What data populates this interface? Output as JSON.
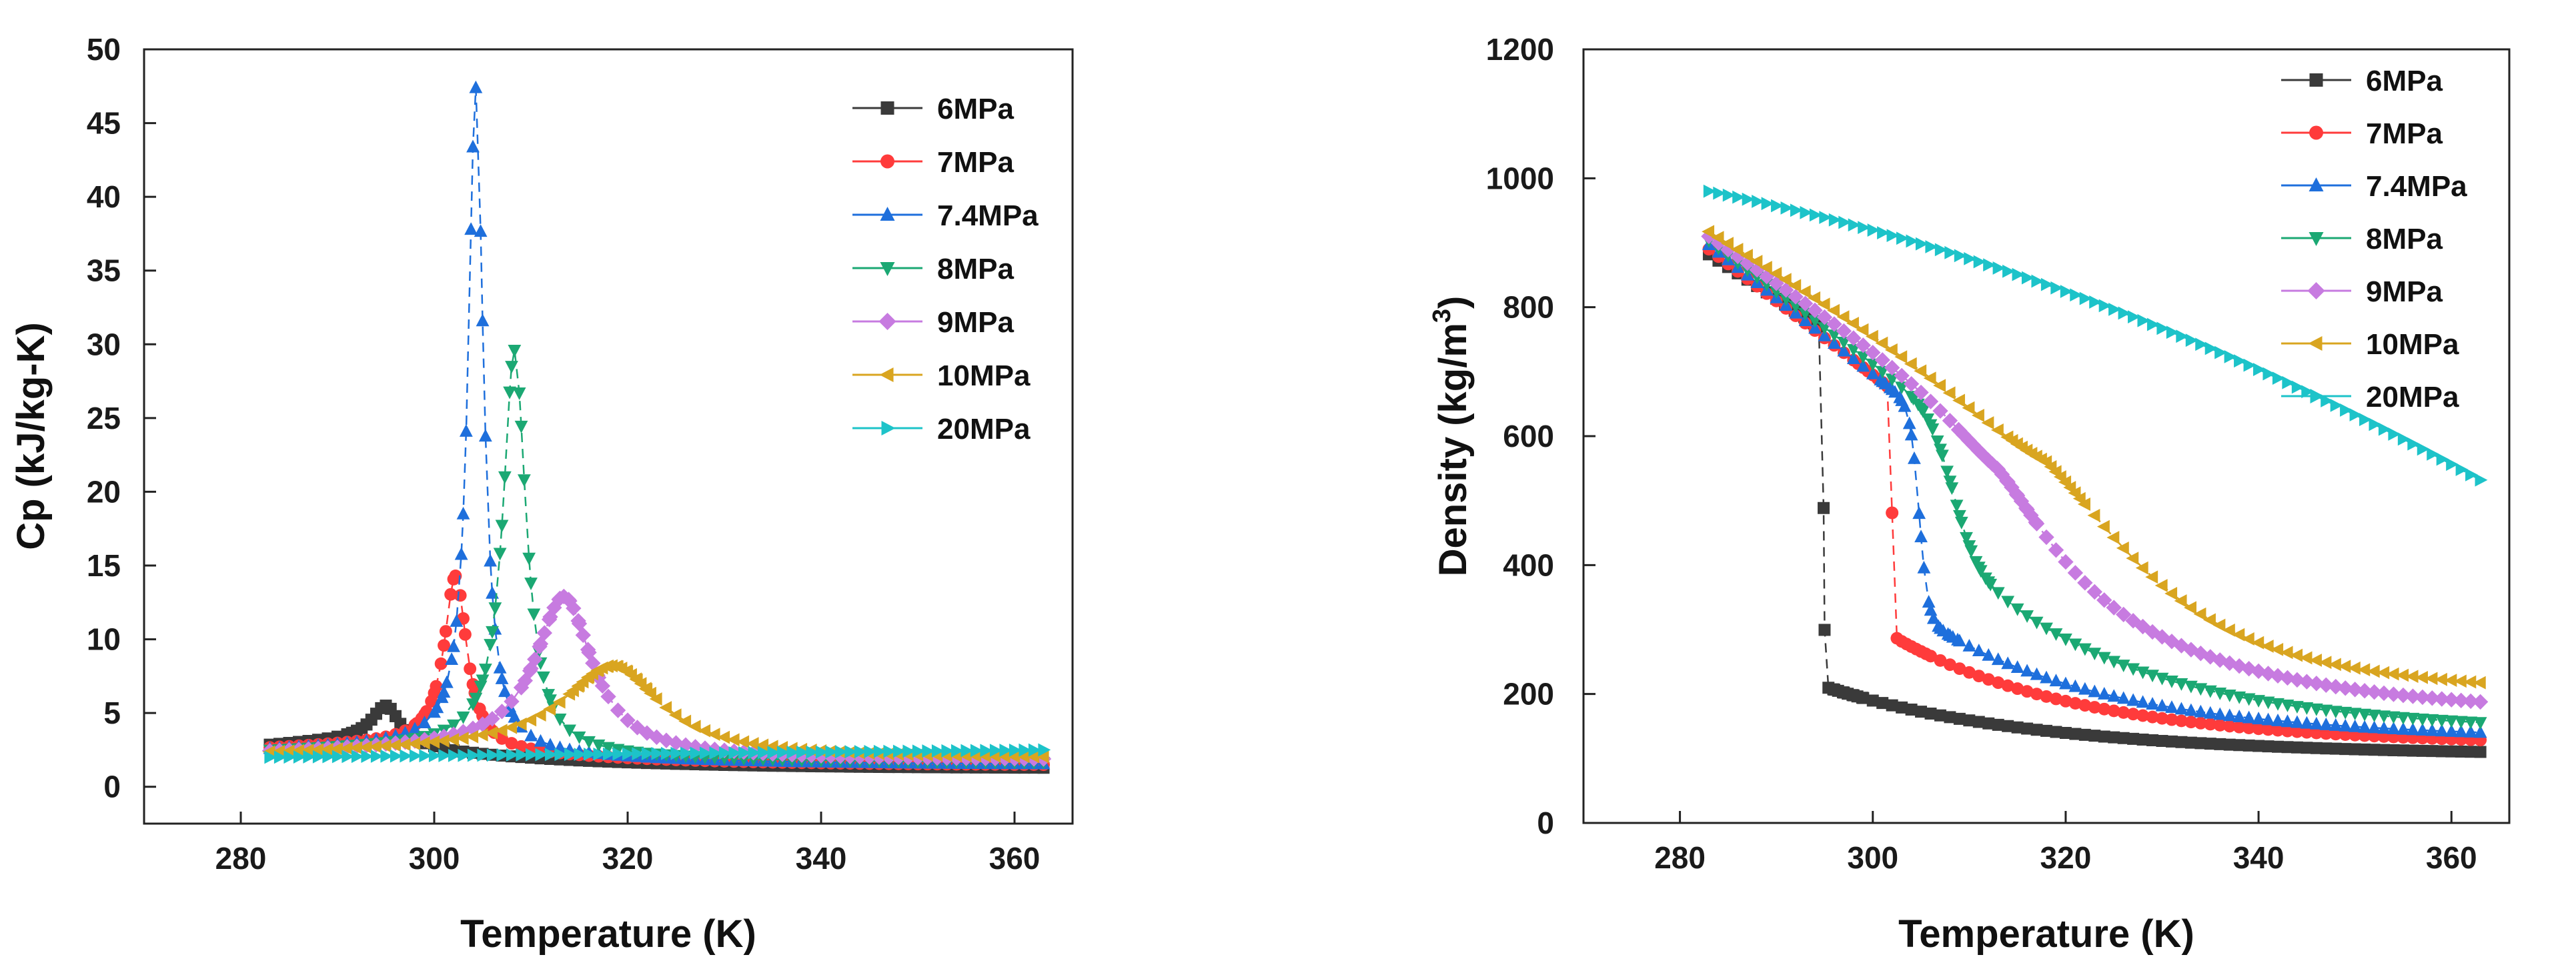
{
  "chart_data": [
    {
      "type": "scatter",
      "xlabel": "Temperature (K)",
      "ylabel": "Cp (kJ/kg-K)",
      "xlim": [
        270,
        366
      ],
      "ylim": [
        -2.5,
        50
      ],
      "xticks": [
        280,
        300,
        320,
        340,
        360
      ],
      "yticks": [
        0,
        5,
        10,
        15,
        20,
        25,
        30,
        35,
        40,
        45,
        50
      ],
      "legend_position": "top-right",
      "series": [
        {
          "name": "6MPa",
          "color": "#3a3a3a",
          "marker": "square",
          "curve": "peak",
          "peak_x": 295.0,
          "peak_y": 5.5,
          "low_left": 2.8,
          "high_right": 1.25,
          "width": 1.7
        },
        {
          "name": "7MPa",
          "color": "#ff3b3b",
          "marker": "circle",
          "curve": "peak",
          "peak_x": 302.2,
          "peak_y": 14.3,
          "low_left": 2.6,
          "high_right": 1.45,
          "width": 1.4
        },
        {
          "name": "7.4MPa",
          "color": "#1e6fdc",
          "marker": "triangle-up",
          "curve": "peak",
          "peak_x": 304.3,
          "peak_y": 47.4,
          "low_left": 2.5,
          "high_right": 1.5,
          "width": 0.95
        },
        {
          "name": "8MPa",
          "color": "#1ba873",
          "marker": "triangle-down",
          "curve": "peak",
          "peak_x": 308.3,
          "peak_y": 29.6,
          "low_left": 2.4,
          "high_right": 1.6,
          "width": 1.45
        },
        {
          "name": "9MPa",
          "color": "#c77be0",
          "marker": "diamond",
          "curve": "peak",
          "peak_x": 313.4,
          "peak_y": 12.9,
          "low_left": 2.3,
          "high_right": 1.8,
          "width": 3.5
        },
        {
          "name": "10MPa",
          "color": "#d9a520",
          "marker": "triangle-left",
          "curve": "peak",
          "peak_x": 318.4,
          "peak_y": 8.2,
          "low_left": 2.2,
          "high_right": 1.9,
          "width": 6.0
        },
        {
          "name": "20MPa",
          "color": "#1dc3c9",
          "marker": "triangle-right",
          "curve": "linear",
          "y_start": 2.0,
          "y_end": 2.5
        }
      ]
    },
    {
      "type": "scatter",
      "xlabel": "Temperature (K)",
      "ylabel": "Density (kg/m",
      "ylabel_sup": "3",
      "ylabel_close": ")",
      "xlim": [
        270,
        366
      ],
      "ylim": [
        0,
        1200
      ],
      "xticks": [
        280,
        300,
        320,
        340,
        360
      ],
      "yticks": [
        0,
        200,
        400,
        600,
        800,
        1000,
        1200
      ],
      "legend_position": "top-right",
      "series": [
        {
          "name": "6MPa",
          "color": "#3a3a3a",
          "marker": "square",
          "curve": "sigmoid",
          "transition_x": 294.9,
          "rho_liquid_start": 882,
          "rho_liquid_end": 765,
          "rho_gas_start": 212,
          "rho_gas_end": 106,
          "width": 0.06
        },
        {
          "name": "7MPa",
          "color": "#ff3b3b",
          "marker": "circle",
          "curve": "sigmoid",
          "transition_x": 302.0,
          "rho_liquid_start": 890,
          "rho_liquid_end": 672,
          "rho_gas_start": 290,
          "rho_gas_end": 122,
          "width": 0.08
        },
        {
          "name": "7.4MPa",
          "color": "#1e6fdc",
          "marker": "triangle-up",
          "curve": "sigmoid",
          "transition_x": 304.8,
          "rho_liquid_start": 897,
          "rho_liquid_end": 640,
          "rho_gas_start": 320,
          "rho_gas_end": 133,
          "width": 0.45
        },
        {
          "name": "8MPa",
          "color": "#1ba873",
          "marker": "triangle-down",
          "curve": "sigmoid",
          "transition_x": 308.2,
          "rho_liquid_start": 903,
          "rho_liquid_end": 620,
          "rho_gas_start": 420,
          "rho_gas_end": 145,
          "width": 1.1
        },
        {
          "name": "9MPa",
          "color": "#c77be0",
          "marker": "diamond",
          "curve": "sigmoid",
          "transition_x": 312.9,
          "rho_liquid_start": 910,
          "rho_liquid_end": 600,
          "rho_gas_start": 500,
          "rho_gas_end": 175,
          "width": 3.2
        },
        {
          "name": "10MPa",
          "color": "#d9a520",
          "marker": "triangle-left",
          "curve": "sigmoid",
          "transition_x": 318.0,
          "rho_liquid_start": 918,
          "rho_liquid_end": 600,
          "rho_gas_start": 520,
          "rho_gas_end": 205,
          "width": 5.5
        },
        {
          "name": "20MPa",
          "color": "#1dc3c9",
          "marker": "triangle-right",
          "curve": "quadratic",
          "y_start": 980,
          "y_mid": 808,
          "y_end": 532
        }
      ]
    }
  ]
}
